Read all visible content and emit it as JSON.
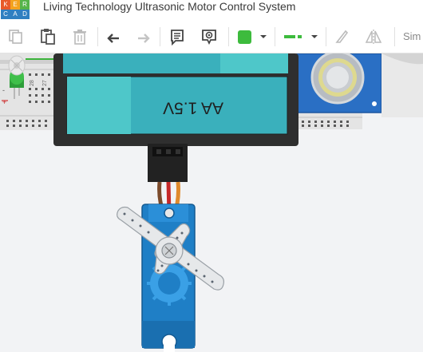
{
  "logo": {
    "letters": [
      "K",
      "E",
      "R",
      "C",
      "A",
      "D"
    ]
  },
  "window": {
    "title": "Living Technology Ultrasonic Motor Control System"
  },
  "toolbar": {
    "items": [
      "copy-icon",
      "paste-icon",
      "delete-icon",
      "undo-icon",
      "redo-icon",
      "notes-icon",
      "view-icon",
      "color-swatch",
      "chevron-down-icon",
      "line-style-icon",
      "chevron-down-icon",
      "wire-tool-icon",
      "flip-icon"
    ],
    "swatch_color": "#3dbb3d",
    "simulate_label": "Sim"
  },
  "canvas": {
    "battery_label": "AA 1.5V",
    "breadboard_rows": [
      "28",
      "27"
    ],
    "breadboard_marks": [
      "-",
      "+"
    ]
  },
  "colors": {
    "battery_body": "#3ab0bc",
    "battery_cap": "#4ec7c9",
    "holder": "#2f2f2f",
    "servo": "#1f7fc6"
  }
}
